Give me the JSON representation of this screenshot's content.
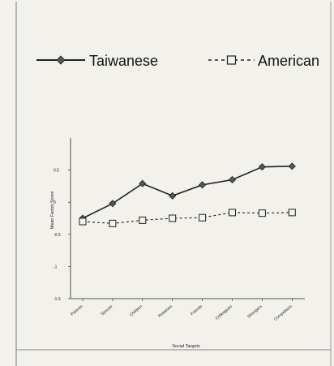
{
  "chart_data": {
    "type": "line",
    "title": "",
    "categories": [
      "Parents",
      "Spouse",
      "Children",
      "Relatives",
      "Friends",
      "Colleagues",
      "Strangers",
      "Competitors"
    ],
    "series": [
      {
        "name": "Taiwanese",
        "values": [
          -0.25,
          -0.02,
          0.29,
          0.1,
          0.27,
          0.35,
          0.55,
          0.56
        ],
        "marker": "diamond",
        "line": "solid",
        "color": "#222222"
      },
      {
        "name": "American",
        "values": [
          -0.3,
          -0.33,
          -0.28,
          -0.25,
          -0.24,
          -0.16,
          -0.17,
          -0.16
        ],
        "marker": "square-open",
        "line": "dashed",
        "color": "#222222"
      }
    ],
    "xlabel": "Social Targets",
    "ylabel": "Mean Factor Score",
    "ylim": [
      -1.5,
      1.0
    ],
    "yticks": [
      0.5,
      0,
      -0.5,
      -1,
      -1.5
    ],
    "ytick_labels": [
      "0.5",
      "0",
      "-0.5",
      "-1",
      "-1.5"
    ],
    "grid": false,
    "legend_position": "top"
  }
}
